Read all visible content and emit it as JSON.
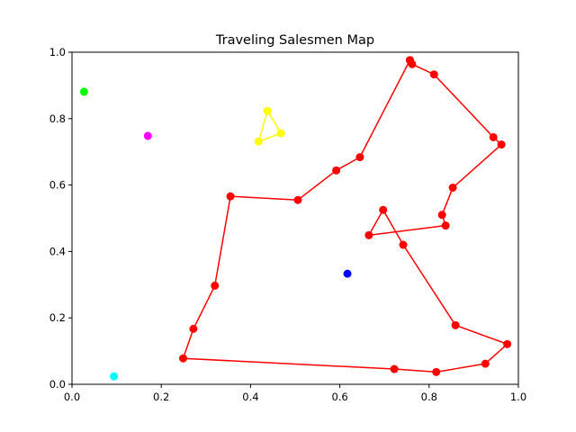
{
  "chart_data": {
    "type": "scatter",
    "title": "Traveling Salesmen Map",
    "xlabel": "",
    "ylabel": "",
    "xlim": [
      0,
      1
    ],
    "ylim": [
      0,
      1
    ],
    "xticks": [
      "0.0",
      "0.2",
      "0.4",
      "0.6",
      "0.8",
      "1.0"
    ],
    "yticks": [
      "0.0",
      "0.2",
      "0.4",
      "0.6",
      "0.8",
      "1.0"
    ],
    "grid": false,
    "legend": "none",
    "series": [
      {
        "color": "#ff0000",
        "closed": false,
        "points": [
          [
            0.757,
            0.976
          ],
          [
            0.762,
            0.964
          ],
          [
            0.811,
            0.933
          ],
          [
            0.944,
            0.744
          ],
          [
            0.962,
            0.722
          ],
          [
            0.853,
            0.592
          ],
          [
            0.829,
            0.51
          ],
          [
            0.837,
            0.478
          ],
          [
            0.665,
            0.449
          ],
          [
            0.697,
            0.525
          ],
          [
            0.742,
            0.42
          ],
          [
            0.859,
            0.178
          ],
          [
            0.975,
            0.121
          ],
          [
            0.926,
            0.062
          ],
          [
            0.816,
            0.037
          ],
          [
            0.722,
            0.046
          ],
          [
            0.249,
            0.078
          ],
          [
            0.272,
            0.167
          ],
          [
            0.32,
            0.297
          ],
          [
            0.355,
            0.566
          ],
          [
            0.506,
            0.555
          ],
          [
            0.592,
            0.644
          ],
          [
            0.645,
            0.684
          ],
          [
            0.757,
            0.976
          ]
        ]
      },
      {
        "color": "#ffff00",
        "closed": true,
        "points": [
          [
            0.438,
            0.823
          ],
          [
            0.468,
            0.756
          ],
          [
            0.418,
            0.731
          ]
        ]
      },
      {
        "color": "#00ff00",
        "closed": false,
        "points": [
          [
            0.027,
            0.881
          ]
        ]
      },
      {
        "color": "#ff00ff",
        "closed": false,
        "points": [
          [
            0.17,
            0.748
          ]
        ]
      },
      {
        "color": "#0000ff",
        "closed": false,
        "points": [
          [
            0.617,
            0.333
          ]
        ]
      },
      {
        "color": "#00ffff",
        "closed": false,
        "points": [
          [
            0.094,
            0.024
          ]
        ]
      }
    ]
  }
}
